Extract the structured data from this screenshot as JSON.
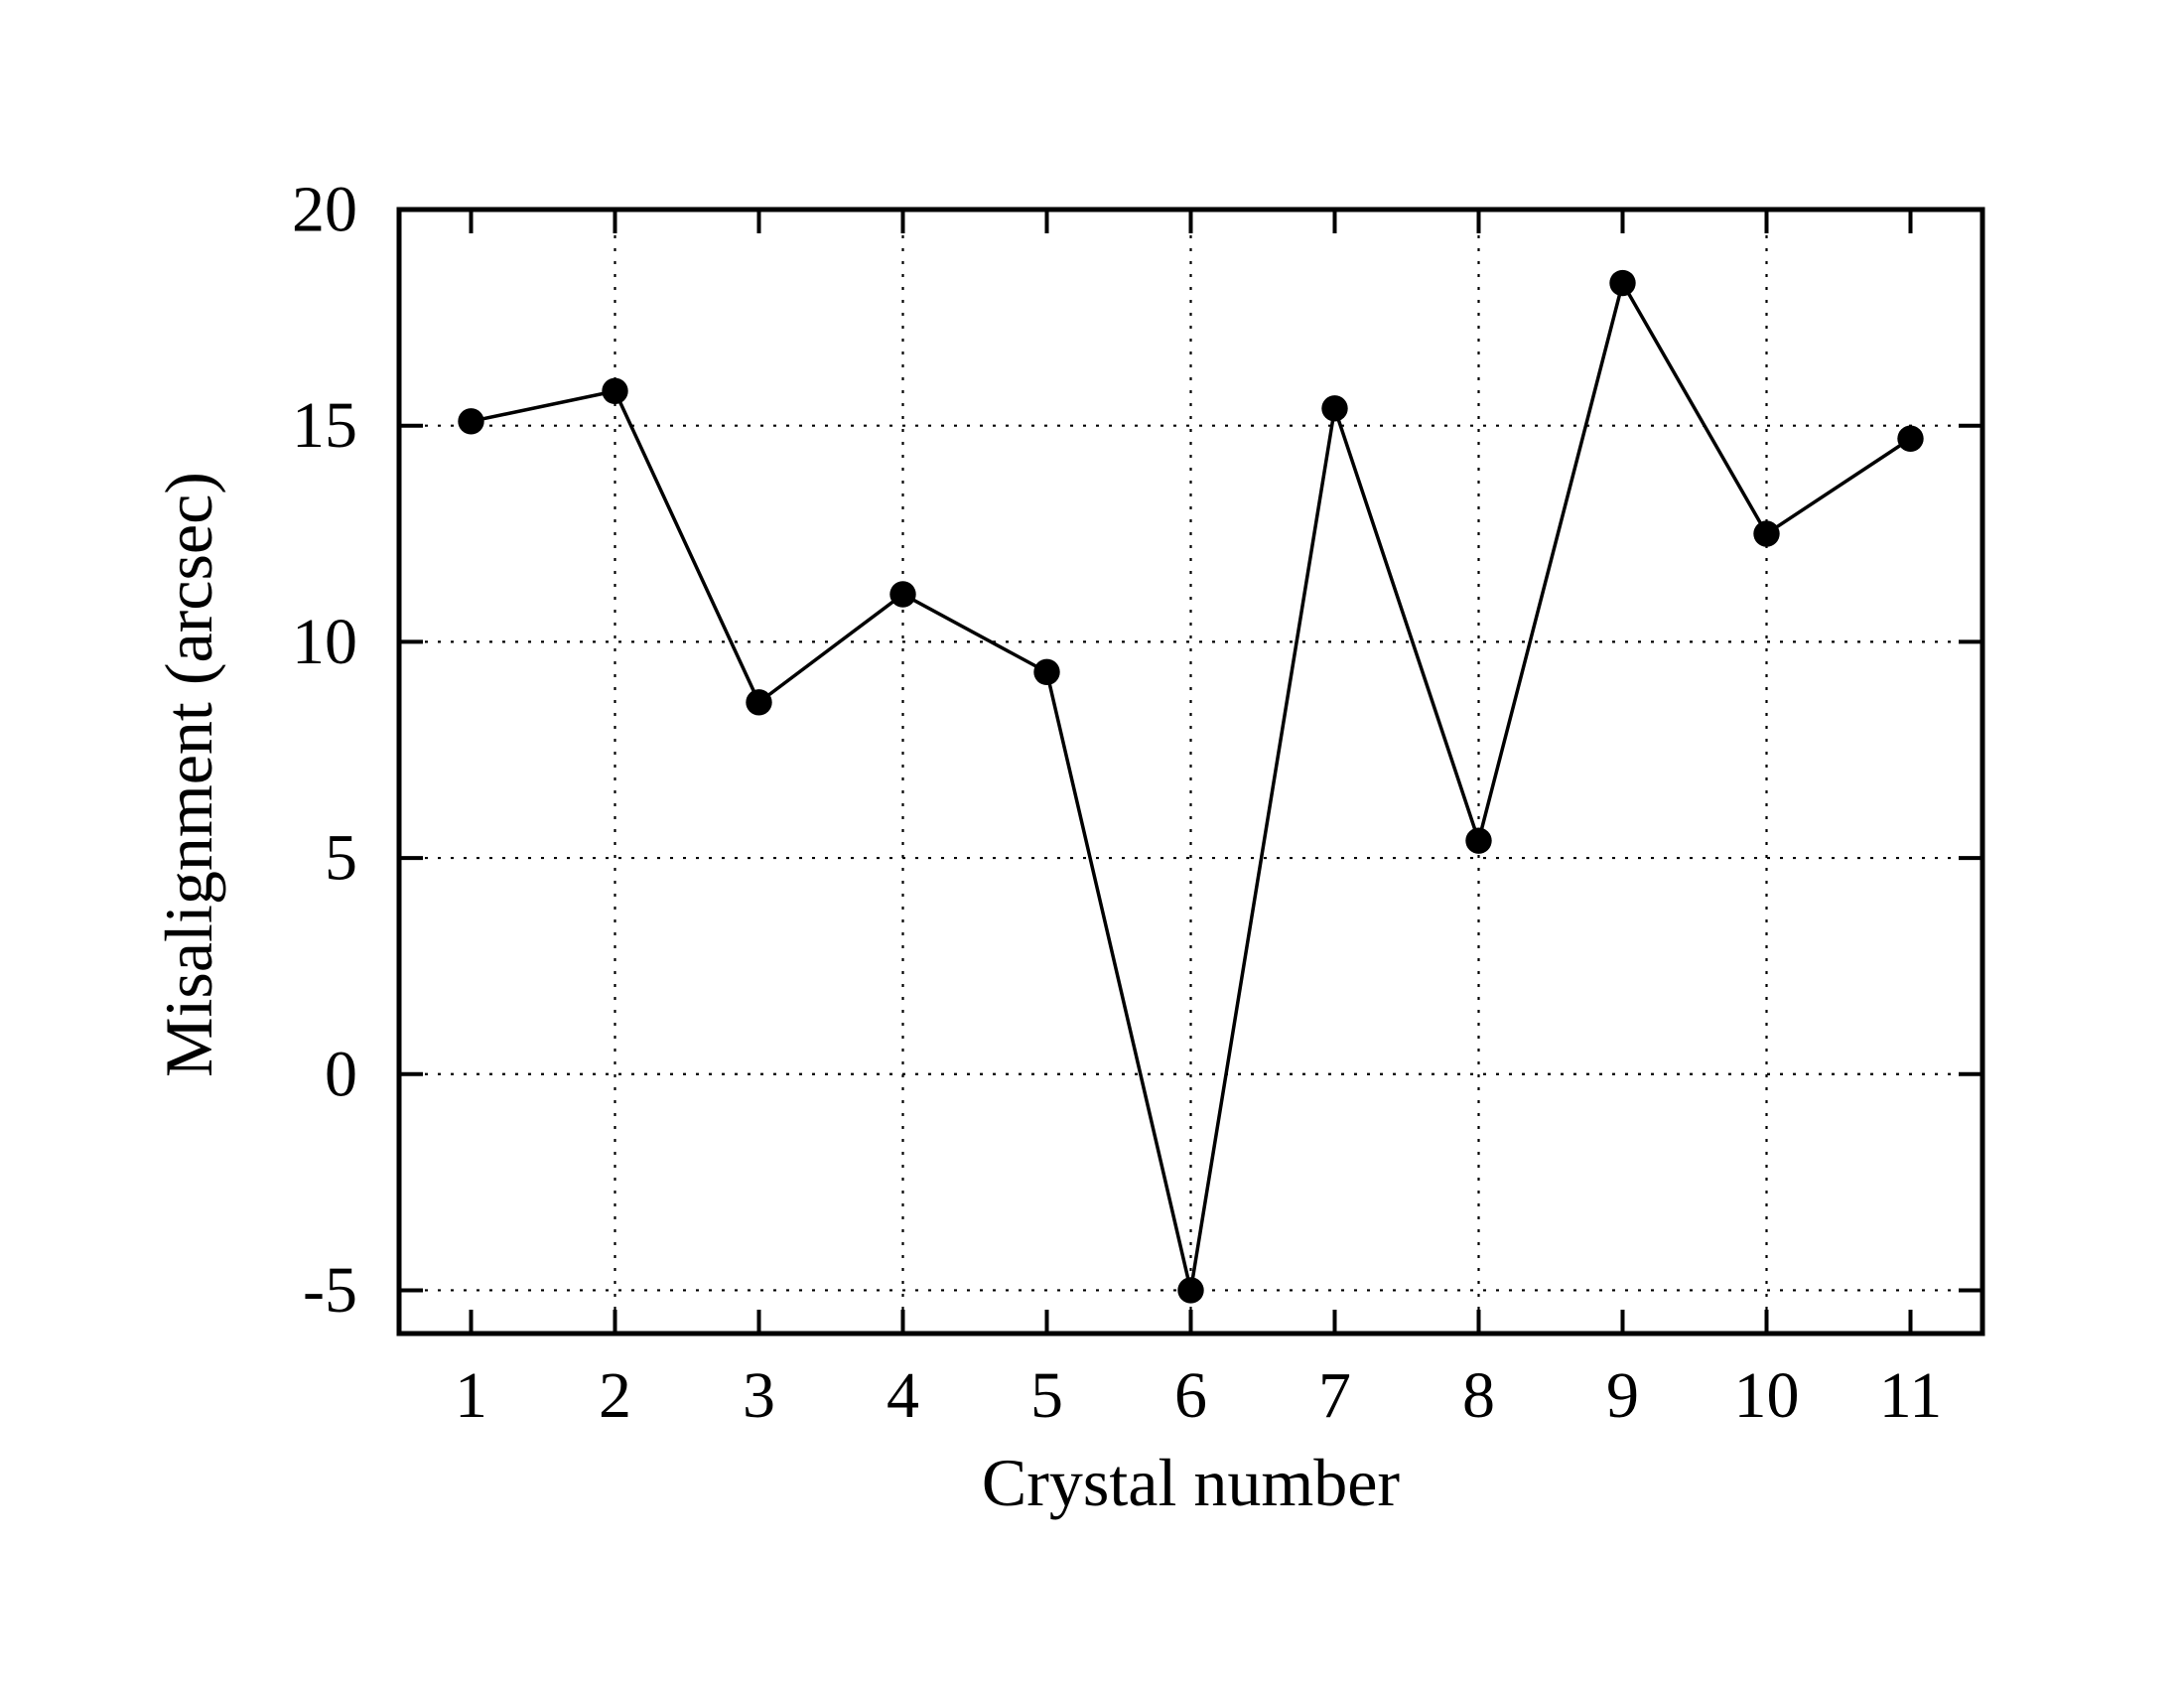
{
  "chart_data": {
    "type": "line",
    "title": "",
    "xlabel": "Crystal number",
    "ylabel": "Misalignment (arcsec)",
    "x": [
      1,
      2,
      3,
      4,
      5,
      6,
      7,
      8,
      9,
      10,
      11
    ],
    "series": [
      {
        "name": "misalignment",
        "values": [
          15.1,
          15.8,
          8.6,
          11.1,
          9.3,
          -5.0,
          15.4,
          5.4,
          18.3,
          12.5,
          14.7
        ]
      }
    ],
    "xlim": [
      0.5,
      11.5
    ],
    "ylim": [
      -6,
      20
    ],
    "x_ticks": [
      1,
      2,
      3,
      4,
      5,
      6,
      7,
      8,
      9,
      10,
      11
    ],
    "y_ticks": [
      20,
      15,
      10,
      5,
      0,
      -5
    ],
    "x_gridlines": [
      2,
      4,
      6,
      8,
      10
    ],
    "y_gridlines": [
      15,
      10,
      5,
      0,
      -5
    ],
    "grid_style": "dotted",
    "legend": "none",
    "marker": "filled-circle",
    "line_color": "#000000",
    "grid_color": "#000000",
    "border_color": "#000000",
    "background": "#ffffff"
  }
}
